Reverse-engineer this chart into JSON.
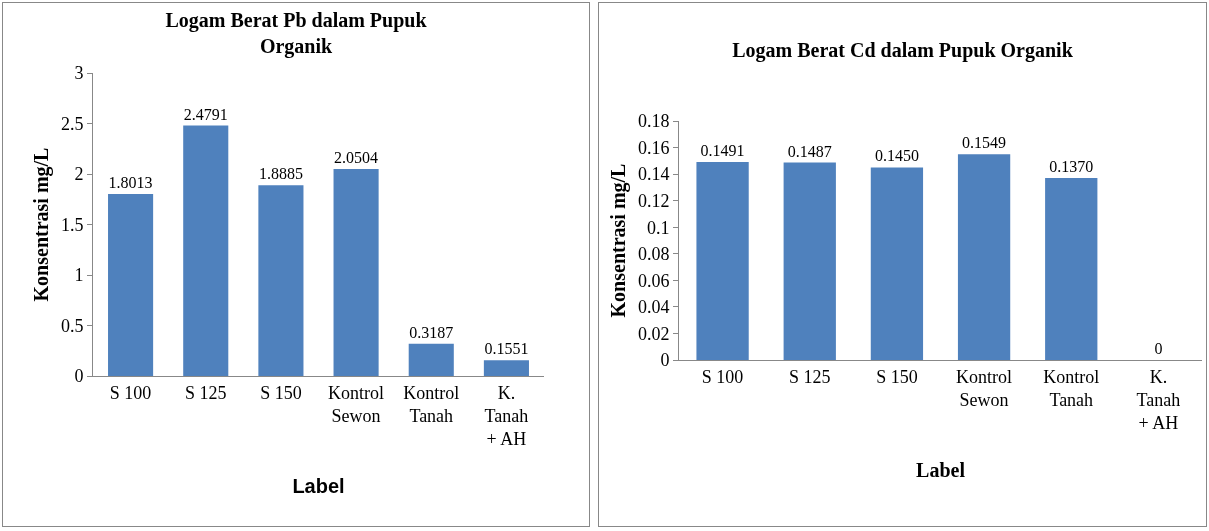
{
  "chart_data": [
    {
      "type": "bar",
      "title": "Logam Berat Pb dalam Pupuk Organik",
      "xlabel": "Label",
      "ylabel": "Konsentrasi mg/L",
      "categories": [
        "S 100",
        "S 125",
        "S 150",
        "Kontrol Sewon",
        "Kontrol Tanah",
        "K. Tanah + AH"
      ],
      "values": [
        1.8013,
        2.4791,
        1.8885,
        2.0504,
        0.3187,
        0.1551
      ],
      "value_labels": [
        "1.8013",
        "2.4791",
        "1.8885",
        "2.0504",
        "0.3187",
        "0.1551"
      ],
      "color": "#4f81bd",
      "ylim": [
        0,
        3
      ],
      "yticks": [
        0,
        0.5,
        1,
        1.5,
        2,
        2.5,
        3
      ],
      "grid": false
    },
    {
      "type": "bar",
      "title": "Logam Berat Cd dalam Pupuk Organik",
      "xlabel": "Label",
      "ylabel": "Konsentrasi mg/L",
      "categories": [
        "S 100",
        "S 125",
        "S 150",
        "Kontrol Sewon",
        "Kontrol Tanah",
        "K. Tanah + AH"
      ],
      "values": [
        0.1491,
        0.1487,
        0.145,
        0.1549,
        0.137,
        0
      ],
      "value_labels": [
        "0.1491",
        "0.1487",
        "0.1450",
        "0.1549",
        "0.1370",
        "0"
      ],
      "color": "#4f81bd",
      "ylim": [
        0,
        0.18
      ],
      "yticks": [
        0,
        0.02,
        0.04,
        0.06,
        0.08,
        0.1,
        0.12,
        0.14,
        0.16,
        0.18
      ],
      "grid": false
    }
  ]
}
